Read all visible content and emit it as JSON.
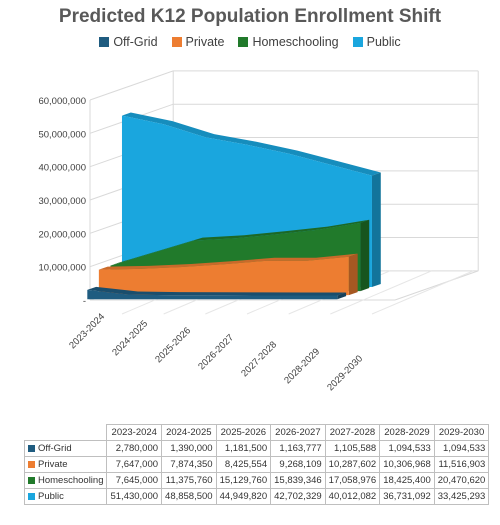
{
  "chart_data": {
    "type": "area",
    "title": "Predicted K12 Population Enrollment Shift",
    "categories": [
      "2023-2024",
      "2024-2025",
      "2025-2026",
      "2026-2027",
      "2027-2028",
      "2028-2029",
      "2029-2030"
    ],
    "y_tick_labels": [
      "-",
      "10,000,000",
      "20,000,000",
      "30,000,000",
      "40,000,000",
      "50,000,000",
      "60,000,000"
    ],
    "ylim": [
      0,
      60000000
    ],
    "grid": true,
    "legend": "top",
    "series": [
      {
        "name": "Off-Grid",
        "color": "#1F5C80",
        "values": [
          2780000,
          1390000,
          1181500,
          1163777,
          1105588,
          1094533,
          1094533
        ],
        "labels": [
          "2,780,000",
          "1,390,000",
          "1,181,500",
          "1,163,777",
          "1,105,588",
          "1,094,533",
          "1,094,533"
        ]
      },
      {
        "name": "Private",
        "color": "#ED7D31",
        "values": [
          7647000,
          7874350,
          8425554,
          9268109,
          10287602,
          10306968,
          11516903
        ],
        "labels": [
          "7,647,000",
          "7,874,350",
          "8,425,554",
          "9,268,109",
          "10,287,602",
          "10,306,968",
          "11,516,903"
        ]
      },
      {
        "name": "Homeschooling",
        "color": "#217A2B",
        "values": [
          7645000,
          11375760,
          15129760,
          15839346,
          17058976,
          18425400,
          20470620
        ],
        "labels": [
          "7,645,000",
          "11,375,760",
          "15,129,760",
          "15,839,346",
          "17,058,976",
          "18,425,400",
          "20,470,620"
        ]
      },
      {
        "name": "Public",
        "color": "#1AA6DE",
        "values": [
          51430000,
          48858500,
          44949820,
          42702329,
          40012082,
          36731092,
          33425293
        ],
        "labels": [
          "51,430,000",
          "48,858,500",
          "44,949,820",
          "42,702,329",
          "40,012,082",
          "36,731,092",
          "33,425,293"
        ]
      }
    ]
  }
}
